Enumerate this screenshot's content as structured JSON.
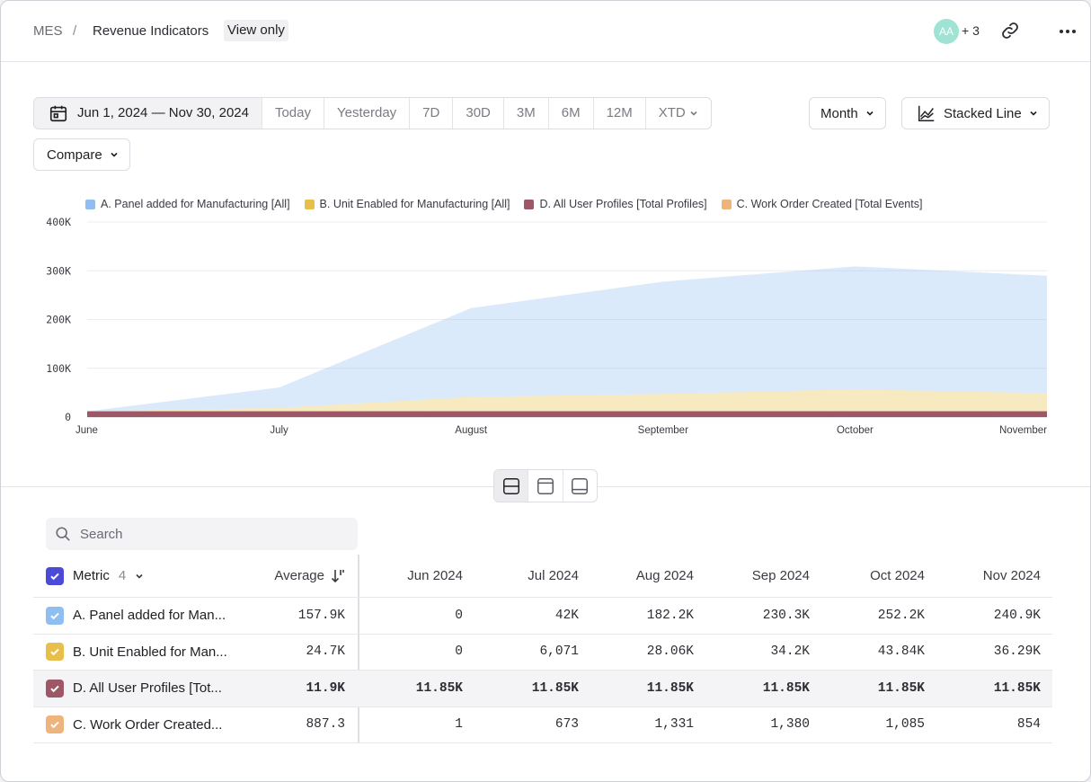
{
  "header": {
    "breadcrumb_root": "MES",
    "breadcrumb_sep": "/",
    "title": "Revenue Indicators",
    "badge": "View only",
    "avatar_initials": "AA",
    "extra_members": "+ 3"
  },
  "controls": {
    "date_range": "Jun 1, 2024 — Nov 30, 2024",
    "presets": [
      "Today",
      "Yesterday",
      "7D",
      "30D",
      "3M",
      "6M",
      "12M"
    ],
    "xtd": "XTD",
    "granularity": "Month",
    "chart_type": "Stacked Line",
    "compare": "Compare"
  },
  "chart_data": {
    "type": "area",
    "stacked": true,
    "x": [
      "June",
      "July",
      "August",
      "September",
      "October",
      "November"
    ],
    "y_ticks": [
      "0",
      "100K",
      "200K",
      "300K",
      "400K"
    ],
    "ylim": [
      0,
      400000
    ],
    "legend_position": "top",
    "series": [
      {
        "name": "A. Panel added for Manufacturing [All]",
        "color": "#8fbff0",
        "values": [
          0,
          42000,
          182200,
          230300,
          252200,
          240900
        ]
      },
      {
        "name": "B. Unit Enabled for Manufacturing [All]",
        "color": "#e8bf4b",
        "values": [
          0,
          6071,
          28060,
          34200,
          43840,
          36290
        ]
      },
      {
        "name": "D. All User Profiles [Total Profiles]",
        "color": "#9e5767",
        "values": [
          11850,
          11850,
          11850,
          11850,
          11850,
          11850
        ]
      },
      {
        "name": "C. Work Order Created [Total Events]",
        "color": "#efb47b",
        "values": [
          1,
          673,
          1331,
          1380,
          1085,
          854
        ]
      }
    ]
  },
  "search": {
    "placeholder": "Search"
  },
  "table": {
    "metric_header": "Metric",
    "metric_count": "4",
    "average_header": "Average",
    "months": [
      "Jun 2024",
      "Jul 2024",
      "Aug 2024",
      "Sep 2024",
      "Oct 2024",
      "Nov 2024"
    ],
    "rows": [
      {
        "label": "A. Panel added for Man...",
        "color": "#8fbff0",
        "average": "157.9K",
        "values": [
          "0",
          "42K",
          "182.2K",
          "230.3K",
          "252.2K",
          "240.9K"
        ]
      },
      {
        "label": "B. Unit Enabled for Man...",
        "color": "#e8bf4b",
        "average": "24.7K",
        "values": [
          "0",
          "6,071",
          "28.06K",
          "34.2K",
          "43.84K",
          "36.29K"
        ]
      },
      {
        "label": "D. All User Profiles [Tot...",
        "color": "#9e5767",
        "average": "11.9K",
        "values": [
          "11.85K",
          "11.85K",
          "11.85K",
          "11.85K",
          "11.85K",
          "11.85K"
        ]
      },
      {
        "label": "C. Work Order Created...",
        "color": "#efb47b",
        "average": "887.3",
        "values": [
          "1",
          "673",
          "1,331",
          "1,380",
          "1,085",
          "854"
        ]
      }
    ]
  }
}
